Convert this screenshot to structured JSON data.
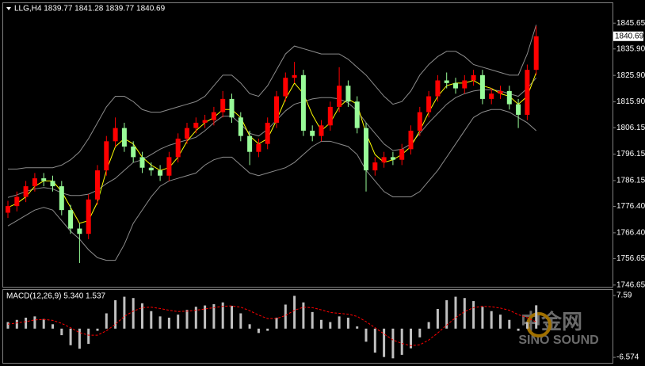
{
  "chart_data": [
    {
      "type": "candlestick",
      "title": "LLG,H4 1839.77 1841.28 1839.77 1840.69",
      "up_color": "#ff0000",
      "down_color": "#98fb98",
      "open": [
        1774,
        1776.5,
        1780,
        1784,
        1787,
        1786,
        1784,
        1775,
        1768,
        1766,
        1779,
        1790,
        1801,
        1806,
        1799,
        1795,
        1791,
        1790,
        1788,
        1795,
        1802,
        1806,
        1808,
        1809,
        1812,
        1817,
        1810,
        1803,
        1797,
        1800,
        1808,
        1818,
        1825,
        1826,
        1805,
        1803,
        1807,
        1814,
        1822,
        1816,
        1806,
        1790,
        1793,
        1795,
        1794,
        1798,
        1805,
        1812,
        1818,
        1824,
        1823,
        1821,
        1824,
        1826,
        1817,
        1819,
        1820,
        1815,
        1811,
        1828
      ],
      "high": [
        1778.5,
        1782,
        1786,
        1789,
        1789,
        1788,
        1786,
        1777,
        1770,
        1781,
        1792,
        1803,
        1810,
        1808,
        1801,
        1797,
        1793,
        1792,
        1797,
        1804,
        1808,
        1810,
        1811,
        1814,
        1820,
        1819,
        1812,
        1805,
        1802,
        1810,
        1820,
        1827,
        1831,
        1828,
        1807,
        1809,
        1816,
        1829,
        1824,
        1818,
        1808,
        1795,
        1797,
        1797,
        1800,
        1807,
        1814,
        1820,
        1826,
        1827,
        1825,
        1826,
        1828,
        1828,
        1821,
        1822,
        1822,
        1817,
        1830,
        1844.5
      ],
      "low": [
        1772,
        1774.5,
        1778,
        1782,
        1784,
        1782,
        1773,
        1766,
        1755,
        1764,
        1777,
        1788,
        1799,
        1797,
        1793,
        1789,
        1788,
        1786,
        1786,
        1793,
        1800,
        1804,
        1806,
        1807,
        1810,
        1808,
        1801,
        1792,
        1795,
        1798,
        1806,
        1816,
        1823,
        1803,
        1801,
        1801,
        1805,
        1812,
        1814,
        1804,
        1782,
        1788,
        1791,
        1792,
        1792,
        1796,
        1803,
        1810,
        1816,
        1821,
        1819,
        1819,
        1822,
        1815,
        1815,
        1817,
        1813,
        1806,
        1809,
        1826
      ],
      "close": [
        1776.5,
        1780,
        1784,
        1787,
        1786,
        1784,
        1775,
        1768,
        1766,
        1779,
        1790,
        1801,
        1806,
        1799,
        1795,
        1791,
        1790,
        1788,
        1795,
        1802,
        1806,
        1808,
        1809,
        1812,
        1817,
        1810,
        1803,
        1797,
        1800,
        1808,
        1818,
        1825,
        1826,
        1805,
        1803,
        1807,
        1814,
        1822,
        1816,
        1806,
        1790,
        1793,
        1795,
        1794,
        1798,
        1805,
        1812,
        1818,
        1824,
        1823,
        1821,
        1824,
        1826,
        1817,
        1819,
        1820,
        1815,
        1811,
        1828,
        1840.69
      ],
      "overlays": [
        {
          "color": "#8c8c8c",
          "values": [
            1790.5,
            1790.5,
            1791,
            1791,
            1791,
            1791,
            1792,
            1794,
            1797,
            1802,
            1808,
            1814,
            1818,
            1818,
            1816,
            1813,
            1812,
            1812,
            1813,
            1814,
            1815,
            1816,
            1818,
            1822,
            1826,
            1826,
            1823,
            1819,
            1818,
            1822,
            1828,
            1834,
            1837,
            1836,
            1835,
            1834,
            1834,
            1834,
            1832,
            1829,
            1826,
            1822,
            1818,
            1815,
            1816,
            1820,
            1826,
            1830,
            1833,
            1835,
            1835,
            1833,
            1830,
            1829,
            1828,
            1827,
            1826,
            1826,
            1834,
            1845
          ]
        },
        {
          "color": "#8c8c8c",
          "values": [
            1769,
            1771,
            1773,
            1775,
            1776,
            1775,
            1771,
            1767,
            1764,
            1760,
            1757,
            1756,
            1756,
            1762,
            1770,
            1775,
            1780,
            1784,
            1786,
            1787,
            1788,
            1789,
            1792,
            1794,
            1795,
            1795,
            1792,
            1789,
            1788,
            1789,
            1790,
            1791,
            1793,
            1796,
            1799,
            1801,
            1801,
            1800,
            1799,
            1796,
            1790,
            1786,
            1782,
            1780,
            1780,
            1780,
            1782,
            1786,
            1790,
            1795,
            1800,
            1805,
            1810,
            1812,
            1813,
            1813,
            1812,
            1810,
            1808,
            1805
          ]
        },
        {
          "color": "#8c8c8c",
          "values": [
            1779.75,
            1780.75,
            1782,
            1783,
            1783.5,
            1783,
            1781.5,
            1780.5,
            1780.5,
            1781,
            1782.5,
            1785,
            1787,
            1790,
            1793,
            1794,
            1796,
            1798,
            1799.5,
            1800.5,
            1801.5,
            1802.5,
            1805,
            1808,
            1810.5,
            1810.5,
            1807.5,
            1804,
            1803,
            1805.5,
            1809,
            1812.5,
            1815,
            1816,
            1817,
            1817.5,
            1817.5,
            1817,
            1815.5,
            1812.5,
            1808,
            1804,
            1800,
            1797.5,
            1798,
            1800,
            1804,
            1808,
            1811.5,
            1815,
            1817.5,
            1819,
            1820,
            1820.5,
            1820.5,
            1820,
            1819,
            1818,
            1821,
            1825
          ]
        },
        {
          "color": "#ffff00",
          "values": [
            1776,
            1777.5,
            1780,
            1784,
            1786,
            1786,
            1782,
            1776,
            1770,
            1771,
            1778,
            1790,
            1799,
            1802,
            1800,
            1795,
            1792,
            1790,
            1791,
            1795,
            1801,
            1805,
            1808,
            1810,
            1813,
            1813,
            1810,
            1803,
            1800,
            1802,
            1809,
            1817,
            1823,
            1819,
            1811,
            1805,
            1808,
            1814,
            1817,
            1815,
            1804,
            1796,
            1793,
            1794,
            1796,
            1799,
            1805,
            1812,
            1818,
            1822,
            1823,
            1823,
            1824,
            1822,
            1821,
            1819,
            1818,
            1815,
            1818,
            1827
          ]
        }
      ],
      "ylim": [
        1746,
        1853.5
      ],
      "yticks": [
        1845.65,
        {
          "value": 1835.9,
          "label": "1835.90"
        },
        {
          "value": 1825.9,
          "label": "1825.90"
        },
        {
          "value": 1815.9,
          "label": "1815.90"
        },
        1806.15,
        1796.15,
        1786.15,
        {
          "value": 1776.4,
          "label": "1776.40"
        },
        {
          "value": 1766.4,
          "label": "1766.40"
        },
        1756.65,
        1746.65
      ]
    },
    {
      "type": "macd",
      "title": "MACD(12,26,9) 5.340 1.537",
      "histogram": {
        "color": "#c0c0c0",
        "values": [
          1.5,
          2.0,
          2.5,
          2.8,
          2.2,
          1.0,
          -1.5,
          -3.8,
          -4.6,
          -3.5,
          -0.5,
          3.5,
          6.5,
          7.3,
          7.0,
          5.8,
          4.0,
          2.8,
          2.5,
          3.2,
          4.3,
          5.0,
          5.3,
          5.6,
          6.0,
          5.2,
          3.5,
          1.0,
          -1.0,
          -0.5,
          2.5,
          5.5,
          7.5,
          6.0,
          3.8,
          2.0,
          1.5,
          2.8,
          2.5,
          0.5,
          -3.0,
          -5.5,
          -6.5,
          -6.8,
          -6.0,
          -4.5,
          -2.0,
          1.5,
          4.5,
          6.5,
          7.3,
          7.0,
          6.3,
          5.0,
          4.0,
          3.2,
          2.0,
          -0.5,
          1.5,
          5.34
        ]
      },
      "signal": {
        "color": "#ff0000",
        "values": [
          1.0,
          1.3,
          1.6,
          2.0,
          2.1,
          1.9,
          1.2,
          0.2,
          -0.9,
          -1.5,
          -1.5,
          -0.5,
          1.0,
          2.8,
          4.0,
          4.8,
          4.9,
          4.6,
          4.2,
          3.9,
          4.0,
          4.2,
          4.5,
          4.8,
          5.1,
          5.2,
          4.9,
          4.1,
          3.1,
          2.3,
          2.3,
          3.0,
          4.2,
          4.9,
          4.8,
          4.3,
          3.7,
          3.5,
          3.3,
          2.8,
          1.6,
          0.2,
          -1.2,
          -2.6,
          -3.4,
          -3.9,
          -3.7,
          -2.6,
          -1.0,
          0.8,
          2.5,
          3.9,
          4.8,
          5.1,
          5.0,
          4.7,
          4.2,
          3.2,
          2.5,
          1.537
        ]
      },
      "ylim": [
        -7.83,
        8.85
      ],
      "yticks": [
        7.59,
        -6.574
      ]
    }
  ],
  "watermark": {
    "logo_text": "中金网",
    "brand": "SINO SOUND"
  }
}
